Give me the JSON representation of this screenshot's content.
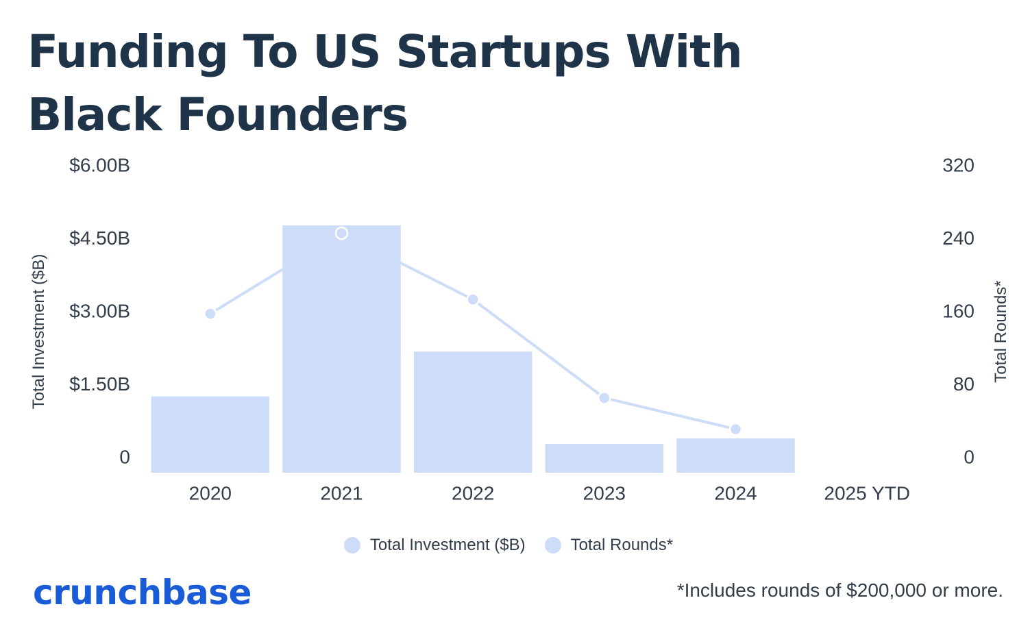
{
  "title": "Funding To US Startups With Black Founders",
  "colors": {
    "bar": "#cddcf8",
    "line": "#cddcf8",
    "title": "#1f3349",
    "text": "#333d4a",
    "brand": "#1a5bd8"
  },
  "chart_data": {
    "type": "bar",
    "title": "Funding To US Startups With Black Founders",
    "categories": [
      "2020",
      "2021",
      "2022",
      "2023",
      "2024",
      "2025 YTD"
    ],
    "series": [
      {
        "name": "Total Investment ($B)",
        "type": "bar",
        "axis": "left",
        "values": [
          1.51,
          4.9,
          2.4,
          0.57,
          0.68,
          null
        ]
      },
      {
        "name": "Total Rounds*",
        "type": "line",
        "axis": "right",
        "values": [
          168,
          253,
          183,
          79,
          46,
          null
        ]
      }
    ],
    "y_left": {
      "label": "Total Investment ($B)",
      "range": [
        0,
        6
      ],
      "ticks": [
        0,
        1.5,
        3,
        4.5,
        6
      ],
      "tick_labels": [
        "0",
        "$1.50B",
        "$3.00B",
        "$4.50B",
        "$6.00B"
      ]
    },
    "y_right": {
      "label": "Total Rounds*",
      "range": [
        0,
        320
      ],
      "ticks": [
        0,
        80,
        160,
        240,
        320
      ],
      "tick_labels": [
        "0",
        "80",
        "160",
        "240",
        "320"
      ]
    },
    "grid": false,
    "legend": "bottom-center"
  },
  "legend": [
    {
      "label": "Total Investment ($B)",
      "color": "#cddcf8"
    },
    {
      "label": "Total Rounds*",
      "color": "#cddcf8"
    }
  ],
  "brand": "crunchbase",
  "footnote": "*Includes rounds of $200,000 or more."
}
